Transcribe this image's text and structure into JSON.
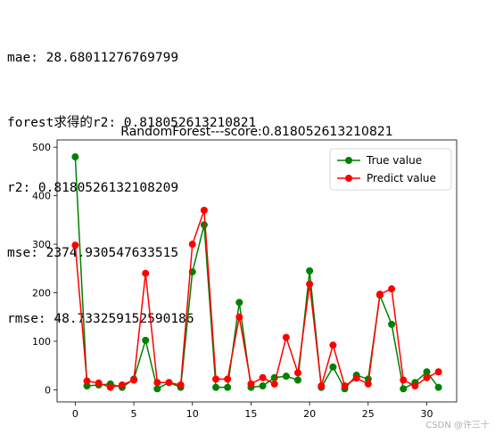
{
  "console": {
    "lines": [
      "mae: 28.68011276769799",
      "forest求得的r2: 0.818052613210821",
      "r2: 0.8180526132108209",
      "mse: 2374.930547633515",
      "rmse: 48.733259152590186"
    ]
  },
  "watermark": "CSDN @许三十",
  "chart_data": {
    "type": "line",
    "title": "RandomForest---score:0.818052613210821",
    "xlabel": "",
    "ylabel": "",
    "xlim": [
      -1.55,
      32.55
    ],
    "ylim": [
      -25,
      515
    ],
    "xticks": [
      0,
      5,
      10,
      15,
      20,
      25,
      30
    ],
    "yticks": [
      0,
      100,
      200,
      300,
      400,
      500
    ],
    "grid": false,
    "legend": "top-right",
    "x": [
      0,
      1,
      2,
      3,
      4,
      5,
      6,
      7,
      8,
      9,
      10,
      11,
      12,
      13,
      14,
      15,
      16,
      17,
      18,
      19,
      20,
      21,
      22,
      23,
      24,
      25,
      26,
      27,
      28,
      29,
      30,
      31
    ],
    "series": [
      {
        "name": "True value",
        "color": "#008000",
        "marker": "circle",
        "values": [
          480,
          8,
          10,
          12,
          5,
          22,
          102,
          2,
          15,
          5,
          243,
          340,
          5,
          5,
          180,
          5,
          8,
          25,
          28,
          20,
          245,
          5,
          47,
          2,
          30,
          22,
          195,
          135,
          2,
          15,
          37,
          5
        ]
      },
      {
        "name": "Predict value",
        "color": "#ff0000",
        "marker": "circle",
        "values": [
          298,
          18,
          14,
          5,
          10,
          20,
          240,
          15,
          15,
          10,
          300,
          370,
          22,
          22,
          150,
          12,
          25,
          12,
          108,
          35,
          218,
          8,
          92,
          8,
          24,
          12,
          197,
          208,
          20,
          8,
          25,
          37
        ]
      }
    ]
  }
}
